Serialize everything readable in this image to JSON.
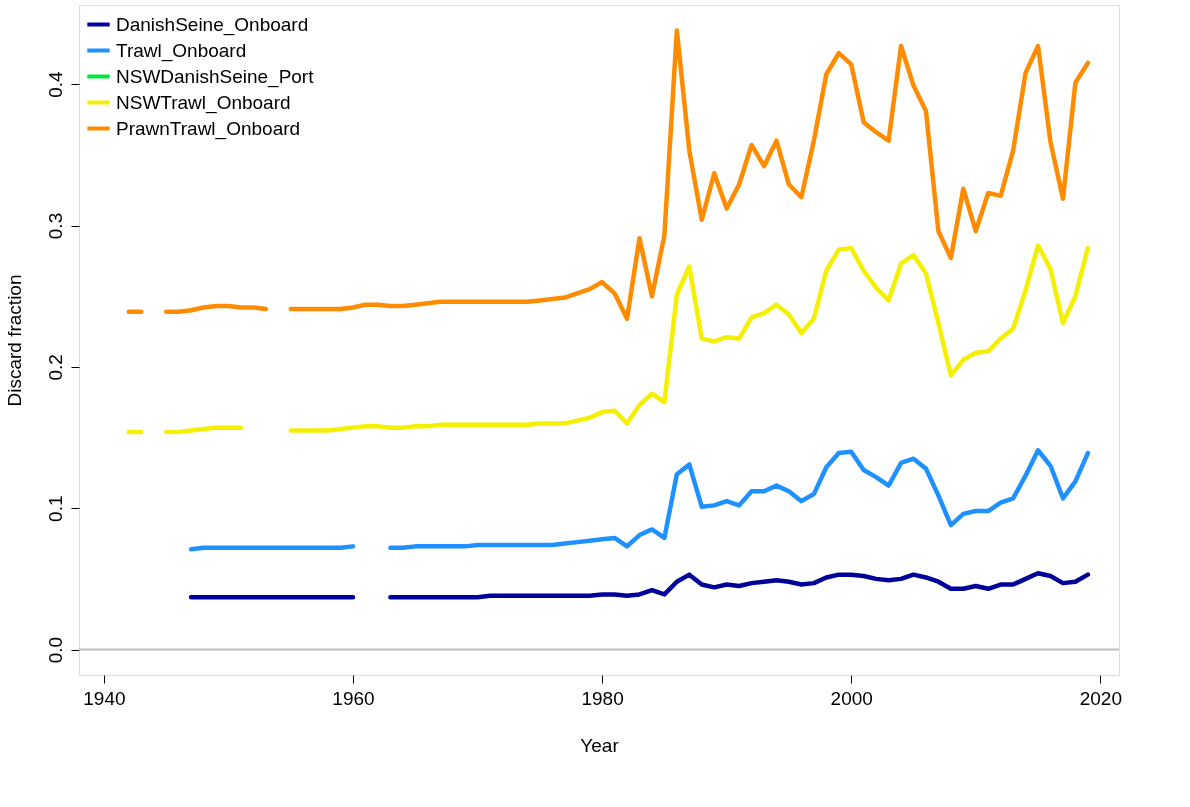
{
  "chart_data": {
    "type": "line",
    "xlabel": "Year",
    "ylabel": "Discard fraction",
    "x": [
      1942,
      1943,
      1944,
      1945,
      1946,
      1947,
      1948,
      1949,
      1950,
      1951,
      1952,
      1953,
      1954,
      1955,
      1956,
      1957,
      1958,
      1959,
      1960,
      1961,
      1962,
      1963,
      1964,
      1965,
      1966,
      1967,
      1968,
      1969,
      1970,
      1971,
      1972,
      1973,
      1974,
      1975,
      1976,
      1977,
      1978,
      1979,
      1980,
      1981,
      1982,
      1983,
      1984,
      1985,
      1986,
      1987,
      1988,
      1989,
      1990,
      1991,
      1992,
      1993,
      1994,
      1995,
      1996,
      1997,
      1998,
      1999,
      2000,
      2001,
      2002,
      2003,
      2004,
      2005,
      2006,
      2007,
      2008,
      2009,
      2010,
      2011,
      2012,
      2013,
      2014,
      2015,
      2016,
      2017,
      2018,
      2019
    ],
    "series": [
      {
        "name": "DanishSeine_Onboard",
        "color": "#00009b",
        "values": [
          null,
          null,
          null,
          null,
          null,
          0.037,
          0.037,
          0.037,
          0.037,
          0.037,
          0.037,
          0.037,
          0.037,
          0.037,
          0.037,
          0.037,
          0.037,
          0.037,
          0.037,
          null,
          null,
          0.037,
          0.037,
          0.037,
          0.037,
          0.037,
          0.037,
          0.037,
          0.037,
          0.038,
          0.038,
          0.038,
          0.038,
          0.038,
          0.038,
          0.038,
          0.038,
          0.038,
          0.039,
          0.039,
          0.038,
          0.039,
          0.042,
          0.039,
          0.048,
          0.053,
          0.046,
          0.044,
          0.046,
          0.045,
          0.047,
          0.048,
          0.049,
          0.048,
          0.046,
          0.047,
          0.051,
          0.053,
          0.053,
          0.052,
          0.05,
          0.049,
          0.05,
          0.053,
          0.051,
          0.048,
          0.043,
          0.043,
          0.045,
          0.043,
          0.046,
          0.046,
          0.05,
          0.054,
          0.052,
          0.047,
          0.048,
          0.053
        ]
      },
      {
        "name": "Trawl_Onboard",
        "color": "#1e90ff",
        "values": [
          null,
          null,
          null,
          null,
          null,
          0.071,
          0.072,
          0.072,
          0.072,
          0.072,
          0.072,
          0.072,
          0.072,
          0.072,
          0.072,
          0.072,
          0.072,
          0.072,
          0.073,
          null,
          null,
          0.072,
          0.072,
          0.073,
          0.073,
          0.073,
          0.073,
          0.073,
          0.074,
          0.074,
          0.074,
          0.074,
          0.074,
          0.074,
          0.074,
          0.075,
          0.076,
          0.077,
          0.078,
          0.079,
          0.073,
          0.081,
          0.085,
          0.079,
          0.124,
          0.131,
          0.101,
          0.102,
          0.105,
          0.102,
          0.112,
          0.112,
          0.116,
          0.112,
          0.105,
          0.11,
          0.129,
          0.139,
          0.14,
          0.127,
          0.122,
          0.116,
          0.132,
          0.135,
          0.128,
          0.109,
          0.088,
          0.096,
          0.098,
          0.098,
          0.104,
          0.107,
          0.123,
          0.141,
          0.13,
          0.107,
          0.119,
          0.139
        ]
      },
      {
        "name": "NSWDanishSeine_Port",
        "color": "#00e63c",
        "values": [
          null,
          null,
          null,
          null,
          null,
          null,
          null,
          null,
          null,
          null,
          null,
          null,
          null,
          null,
          null,
          null,
          null,
          null,
          null,
          null,
          null,
          null,
          null,
          null,
          null,
          null,
          null,
          null,
          null,
          null,
          null,
          null,
          null,
          null,
          null,
          null,
          null,
          null,
          null,
          null,
          null,
          null,
          null,
          null,
          null,
          null,
          null,
          null,
          null,
          null,
          null,
          null,
          null,
          null,
          null,
          null,
          null,
          null,
          null,
          null,
          null,
          null,
          null,
          null,
          null,
          null,
          null,
          null,
          null,
          null,
          null,
          null,
          null,
          null,
          null,
          null,
          null,
          null
        ]
      },
      {
        "name": "NSWTrawl_Onboard",
        "color": "#f5f000",
        "values": [
          0.154,
          0.154,
          null,
          0.154,
          0.154,
          0.155,
          0.156,
          0.157,
          0.157,
          0.157,
          null,
          null,
          null,
          0.155,
          0.155,
          0.155,
          0.155,
          0.156,
          0.157,
          0.158,
          0.158,
          0.157,
          0.157,
          0.158,
          0.158,
          0.159,
          0.159,
          0.159,
          0.159,
          0.159,
          0.159,
          0.159,
          0.159,
          0.16,
          0.16,
          0.16,
          0.162,
          0.164,
          0.168,
          0.169,
          0.16,
          0.173,
          0.181,
          0.175,
          0.251,
          0.271,
          0.22,
          0.218,
          0.221,
          0.22,
          0.235,
          0.238,
          0.244,
          0.237,
          0.224,
          0.234,
          0.268,
          0.283,
          0.284,
          0.268,
          0.256,
          0.247,
          0.273,
          0.279,
          0.266,
          0.231,
          0.194,
          0.205,
          0.21,
          0.211,
          0.22,
          0.227,
          0.254,
          0.286,
          0.269,
          0.231,
          0.25,
          0.284
        ]
      },
      {
        "name": "PrawnTrawl_Onboard",
        "color": "#ff8c00",
        "values": [
          0.239,
          0.239,
          null,
          0.239,
          0.239,
          0.24,
          0.242,
          0.243,
          0.243,
          0.242,
          0.242,
          0.241,
          null,
          0.241,
          0.241,
          0.241,
          0.241,
          0.241,
          0.242,
          0.244,
          0.244,
          0.243,
          0.243,
          0.244,
          0.245,
          0.246,
          0.246,
          0.246,
          0.246,
          0.246,
          0.246,
          0.246,
          0.246,
          0.247,
          0.248,
          0.249,
          0.252,
          0.255,
          0.26,
          0.252,
          0.234,
          0.291,
          0.25,
          0.293,
          0.438,
          0.353,
          0.304,
          0.337,
          0.312,
          0.329,
          0.357,
          0.342,
          0.36,
          0.329,
          0.32,
          0.36,
          0.407,
          0.422,
          0.414,
          0.373,
          0.366,
          0.36,
          0.427,
          0.399,
          0.381,
          0.296,
          0.277,
          0.326,
          0.296,
          0.323,
          0.321,
          0.353,
          0.408,
          0.427,
          0.359,
          0.319,
          0.401,
          0.415
        ]
      }
    ],
    "xlim": [
      1938,
      2021.5
    ],
    "xticks": [
      1940,
      1960,
      1980,
      2000,
      2020
    ],
    "ylim": [
      -0.018,
      0.456
    ],
    "yticks": [
      {
        "value": 0,
        "label": "0.0"
      },
      {
        "value": 0.1,
        "label": "0.1"
      },
      {
        "value": 0.2,
        "label": "0.2"
      },
      {
        "value": 0.3,
        "label": "0.3"
      },
      {
        "value": 0.4,
        "label": "0.4"
      }
    ],
    "ref_lines": [
      {
        "axis": "y",
        "value": 0,
        "color": "#bebebe"
      }
    ],
    "grid": false,
    "legend": "top left",
    "line_style": "solid",
    "marker": "none"
  }
}
